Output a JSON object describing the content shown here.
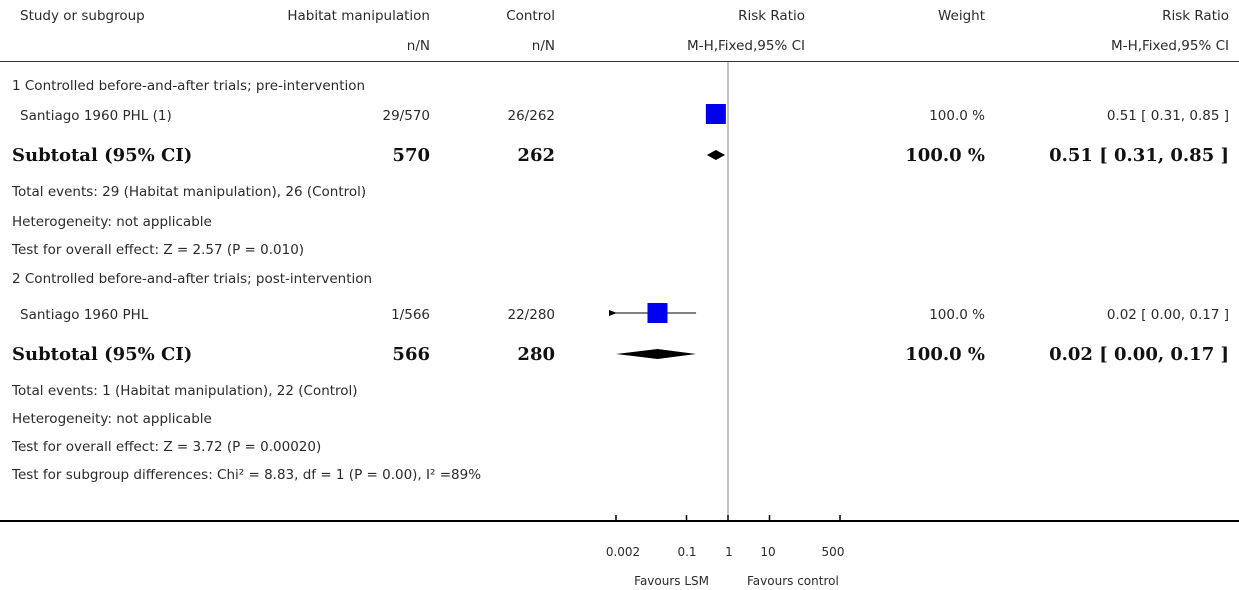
{
  "header": {
    "study": "Study or subgroup",
    "exp": "Habitat manipulation",
    "ctrl": "Control",
    "rr": "Risk Ratio",
    "weight": "Weight",
    "rr2": "Risk Ratio",
    "exp_sub": "n/N",
    "ctrl_sub": "n/N",
    "rr_sub": "M-H,Fixed,95% CI",
    "rr2_sub": "M-H,Fixed,95% CI"
  },
  "groups": [
    {
      "title": "1 Controlled before-and-after trials; pre-intervention",
      "study": {
        "name": "Santiago 1960 PHL (1)",
        "exp": "29/570",
        "ctrl": "26/262",
        "weight": "100.0 %",
        "ci": "0.51 [ 0.31, 0.85 ]"
      },
      "subtotal": {
        "label": "Subtotal (95% CI)",
        "exp": "570",
        "ctrl": "262",
        "weight": "100.0 %",
        "ci": "0.51 [ 0.31, 0.85 ]"
      },
      "events": "Total events: 29 (Habitat manipulation), 26 (Control)",
      "heterogeneity": "Heterogeneity: not applicable",
      "overall": "Test for overall effect: Z = 2.57 (P = 0.010)"
    },
    {
      "title": "2 Controlled before-and-after trials; post-intervention",
      "study": {
        "name": "Santiago 1960 PHL",
        "exp": "1/566",
        "ctrl": "22/280",
        "weight": "100.0 %",
        "ci": "0.02 [ 0.00, 0.17 ]"
      },
      "subtotal": {
        "label": "Subtotal (95% CI)",
        "exp": "566",
        "ctrl": "280",
        "weight": "100.0 %",
        "ci": "0.02 [ 0.00, 0.17 ]"
      },
      "events": "Total events: 1 (Habitat manipulation), 22 (Control)",
      "heterogeneity": "Heterogeneity: not applicable",
      "overall": "Test for overall effect: Z = 3.72 (P = 0.00020)"
    }
  ],
  "subgroup_test": "Test for subgroup differences: Chi² = 8.83, df = 1 (P = 0.00), I² =89%",
  "axis": {
    "ticks": [
      "0.002",
      "0.1",
      "1",
      "10",
      "500"
    ],
    "favours_left": "Favours LSM",
    "favours_right": "Favours control"
  },
  "colors": {
    "square": "#0000ee",
    "diamond": "#000000",
    "text": "#2b2b2b"
  },
  "chart_data": {
    "type": "forest",
    "scale": "log",
    "xlim": [
      0.002,
      500
    ],
    "ticks": [
      0.002,
      0.1,
      1,
      10,
      500
    ],
    "studies": [
      {
        "name": "Santiago 1960 PHL (1)",
        "rr": 0.51,
        "lo": 0.31,
        "hi": 0.85,
        "weight": 100.0
      },
      {
        "name": "Santiago 1960 PHL",
        "rr": 0.02,
        "lo": 0.0,
        "hi": 0.17,
        "weight": 100.0,
        "arrow_left": true
      }
    ],
    "subtotals": [
      {
        "rr": 0.51,
        "lo": 0.31,
        "hi": 0.85
      },
      {
        "rr": 0.02,
        "lo": 0.0,
        "hi": 0.17
      }
    ]
  }
}
